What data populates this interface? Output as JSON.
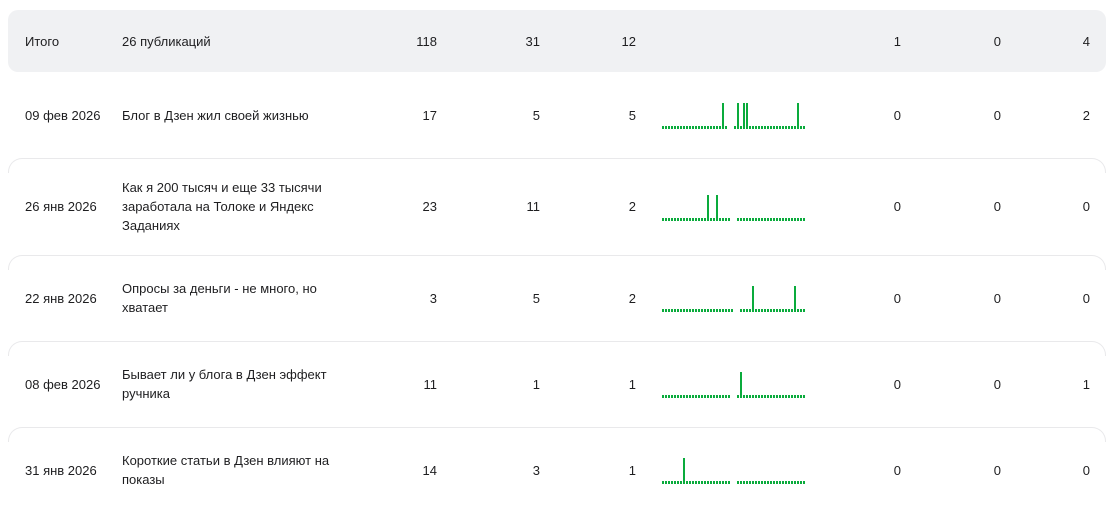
{
  "colors": {
    "spark_green": "#0aab3c",
    "summary_bg": "#f0f1f3",
    "row_border": "#e9e9eb",
    "text": "#1e1e20"
  },
  "table": {
    "summary": {
      "date": "Итого",
      "title": "26 публикаций",
      "v1": "118",
      "v2": "31",
      "v3": "12",
      "v4": "1",
      "v5": "0",
      "v6": "4"
    },
    "rows": [
      {
        "date": "09 фев 2026",
        "title": "Блог в Дзен жил своей жизнью",
        "v1": "17",
        "v2": "5",
        "v3": "5",
        "v4": "0",
        "v5": "0",
        "v6": "2"
      },
      {
        "date": "26 янв 2026",
        "title": "Как я 200 тысяч и еще 33 тысячи заработала на Толоке и Яндекс Заданиях",
        "v1": "23",
        "v2": "11",
        "v3": "2",
        "v4": "0",
        "v5": "0",
        "v6": "0"
      },
      {
        "date": "22 янв 2026",
        "title": "Опросы за деньги - не много, но хватает",
        "v1": "3",
        "v2": "5",
        "v3": "2",
        "v4": "0",
        "v5": "0",
        "v6": "0"
      },
      {
        "date": "08 фев 2026",
        "title": "Бывает ли у блога в Дзен эффект ручника",
        "v1": "11",
        "v2": "1",
        "v3": "1",
        "v4": "0",
        "v5": "0",
        "v6": "1"
      },
      {
        "date": "31 янв 2026",
        "title": "Короткие статьи в Дзен влияют на показы",
        "v1": "14",
        "v2": "3",
        "v3": "1",
        "v4": "0",
        "v5": "0",
        "v6": "0"
      }
    ]
  },
  "chart_data": [
    {
      "type": "bar",
      "label": "09 фев 2026",
      "units": "relative-activity",
      "ylim": [
        0,
        10
      ],
      "values": [
        1,
        1,
        1,
        1,
        1,
        1,
        1,
        1,
        1,
        1,
        1,
        1,
        1,
        1,
        1,
        1,
        1,
        1,
        1,
        1,
        10,
        1,
        0,
        0,
        1,
        10,
        1,
        10,
        10,
        1,
        1,
        1,
        1,
        1,
        1,
        1,
        1,
        1,
        1,
        1,
        1,
        1,
        1,
        1,
        1,
        10,
        1,
        1
      ]
    },
    {
      "type": "bar",
      "label": "26 янв 2026",
      "units": "relative-activity",
      "ylim": [
        0,
        10
      ],
      "values": [
        1,
        1,
        1,
        1,
        1,
        1,
        1,
        1,
        1,
        1,
        1,
        1,
        1,
        1,
        1,
        10,
        1,
        1,
        10,
        1,
        1,
        1,
        1,
        0,
        0,
        1,
        1,
        1,
        1,
        1,
        1,
        1,
        1,
        1,
        1,
        1,
        1,
        1,
        1,
        1,
        1,
        1,
        1,
        1,
        1,
        1,
        1,
        1
      ]
    },
    {
      "type": "bar",
      "label": "22 янв 2026",
      "units": "relative-activity",
      "ylim": [
        0,
        10
      ],
      "values": [
        1,
        1,
        1,
        1,
        1,
        1,
        1,
        1,
        1,
        1,
        1,
        1,
        1,
        1,
        1,
        1,
        1,
        1,
        1,
        1,
        1,
        1,
        1,
        1,
        0,
        0,
        1,
        1,
        1,
        1,
        10,
        1,
        1,
        1,
        1,
        1,
        1,
        1,
        1,
        1,
        1,
        1,
        1,
        1,
        10,
        1,
        1,
        1
      ]
    },
    {
      "type": "bar",
      "label": "08 фев 2026",
      "units": "relative-activity",
      "ylim": [
        0,
        10
      ],
      "values": [
        1,
        1,
        1,
        1,
        1,
        1,
        1,
        1,
        1,
        1,
        1,
        1,
        1,
        1,
        1,
        1,
        1,
        1,
        1,
        1,
        1,
        1,
        1,
        0,
        0,
        1,
        10,
        1,
        1,
        1,
        1,
        1,
        1,
        1,
        1,
        1,
        1,
        1,
        1,
        1,
        1,
        1,
        1,
        1,
        1,
        1,
        1,
        1
      ]
    },
    {
      "type": "bar",
      "label": "31 янв 2026",
      "units": "relative-activity",
      "ylim": [
        0,
        10
      ],
      "values": [
        1,
        1,
        1,
        1,
        1,
        1,
        1,
        10,
        1,
        1,
        1,
        1,
        1,
        1,
        1,
        1,
        1,
        1,
        1,
        1,
        1,
        1,
        1,
        0,
        0,
        1,
        1,
        1,
        1,
        1,
        1,
        1,
        1,
        1,
        1,
        1,
        1,
        1,
        1,
        1,
        1,
        1,
        1,
        1,
        1,
        1,
        1,
        1
      ]
    }
  ]
}
